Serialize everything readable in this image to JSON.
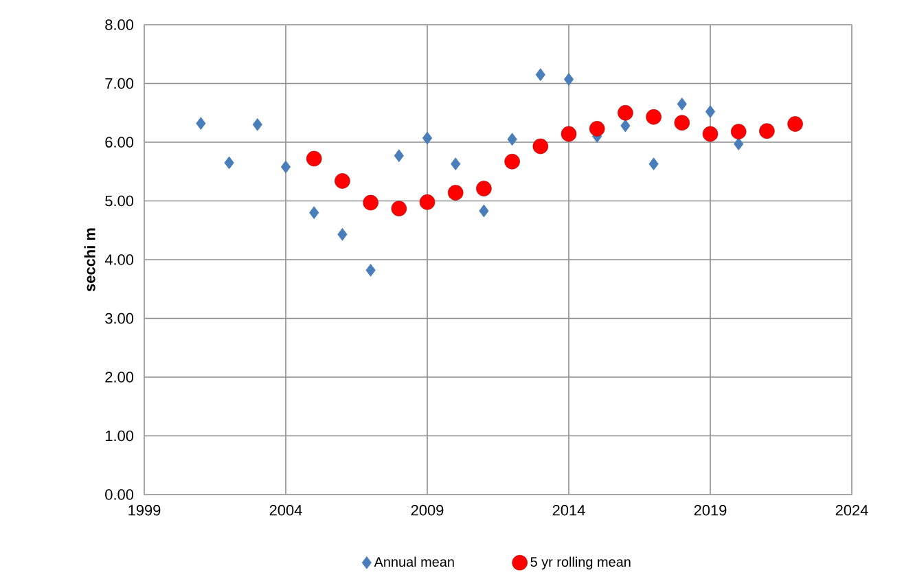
{
  "chart_data": {
    "type": "scatter",
    "ylabel": "secchi  m",
    "xlim": [
      1999,
      2024
    ],
    "xticks": [
      1999,
      2004,
      2009,
      2014,
      2019,
      2024
    ],
    "ylim": [
      0,
      8
    ],
    "yticks": [
      {
        "value": 0,
        "label": "0.00"
      },
      {
        "value": 1,
        "label": "1.00"
      },
      {
        "value": 2,
        "label": "2.00"
      },
      {
        "value": 3,
        "label": "3.00"
      },
      {
        "value": 4,
        "label": "4.00"
      },
      {
        "value": 5,
        "label": "5.00"
      },
      {
        "value": 6,
        "label": "6.00"
      },
      {
        "value": 7,
        "label": "7.00"
      },
      {
        "value": 8,
        "label": "8.00"
      }
    ],
    "grid": true,
    "legend": "bottom",
    "series": [
      {
        "name": "Annual mean",
        "color": "#4a7ebb",
        "marker": "diamond",
        "x": [
          2001,
          2002,
          2003,
          2004,
          2005,
          2006,
          2007,
          2008,
          2009,
          2010,
          2011,
          2012,
          2013,
          2014,
          2015,
          2016,
          2017,
          2018,
          2019,
          2020
        ],
        "values": [
          6.32,
          5.65,
          6.3,
          5.58,
          4.8,
          4.43,
          3.82,
          5.77,
          6.07,
          5.63,
          4.83,
          6.05,
          7.15,
          7.07,
          6.1,
          6.28,
          5.63,
          6.65,
          6.52,
          5.97
        ]
      },
      {
        "name": "5 yr rolling mean",
        "color": "#ff0000",
        "marker": "circle",
        "x": [
          2005,
          2006,
          2007,
          2008,
          2009,
          2010,
          2011,
          2012,
          2013,
          2014,
          2015,
          2016,
          2017,
          2018,
          2019,
          2020,
          2021,
          2022
        ],
        "values": [
          5.72,
          5.34,
          4.97,
          4.87,
          4.98,
          5.14,
          5.21,
          5.67,
          5.93,
          6.14,
          6.23,
          6.5,
          6.43,
          6.33,
          6.14,
          6.18,
          6.19,
          6.31
        ]
      }
    ]
  }
}
